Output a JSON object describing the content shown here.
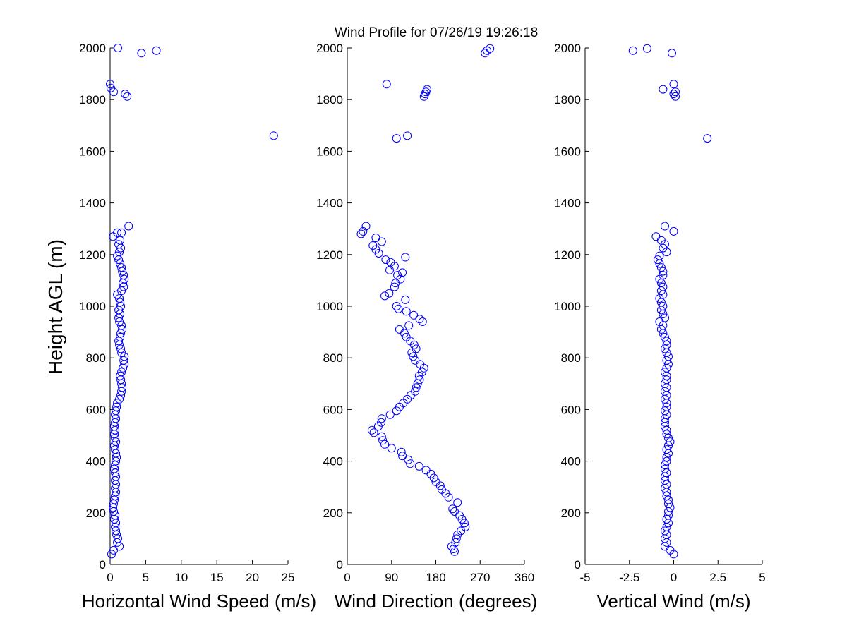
{
  "chart_data": [
    {
      "type": "scatter",
      "title": "Wind Profile for  07/26/19 19:26:18",
      "xlabel": "Horizontal Wind Speed (m/s)",
      "ylabel": "Height AGL (m)",
      "xlim": [
        0,
        25
      ],
      "ylim": [
        0,
        2000
      ],
      "xticks": [
        "0",
        "5",
        "10",
        "15",
        "20",
        "25"
      ],
      "yticks": [
        "0",
        "200",
        "400",
        "600",
        "800",
        "1000",
        "1200",
        "1400",
        "1600",
        "1800",
        "2000"
      ],
      "marker_color": "#0000ff",
      "grid": false,
      "points": [
        [
          0.2,
          40
        ],
        [
          0.5,
          55
        ],
        [
          1.3,
          70
        ],
        [
          1.0,
          85
        ],
        [
          1.1,
          100
        ],
        [
          0.9,
          115
        ],
        [
          0.8,
          130
        ],
        [
          0.7,
          145
        ],
        [
          0.8,
          160
        ],
        [
          0.6,
          175
        ],
        [
          0.7,
          190
        ],
        [
          0.5,
          205
        ],
        [
          0.4,
          220
        ],
        [
          0.5,
          235
        ],
        [
          0.6,
          250
        ],
        [
          0.7,
          265
        ],
        [
          0.8,
          280
        ],
        [
          0.7,
          295
        ],
        [
          0.8,
          310
        ],
        [
          0.7,
          325
        ],
        [
          0.8,
          340
        ],
        [
          0.7,
          355
        ],
        [
          0.6,
          370
        ],
        [
          0.7,
          385
        ],
        [
          0.8,
          400
        ],
        [
          0.9,
          415
        ],
        [
          0.8,
          430
        ],
        [
          0.7,
          445
        ],
        [
          0.6,
          460
        ],
        [
          0.8,
          475
        ],
        [
          0.7,
          490
        ],
        [
          0.6,
          505
        ],
        [
          0.7,
          520
        ],
        [
          0.6,
          535
        ],
        [
          0.7,
          550
        ],
        [
          0.8,
          565
        ],
        [
          0.7,
          580
        ],
        [
          0.8,
          595
        ],
        [
          0.9,
          610
        ],
        [
          1.0,
          625
        ],
        [
          1.3,
          640
        ],
        [
          1.5,
          655
        ],
        [
          1.6,
          670
        ],
        [
          1.7,
          685
        ],
        [
          1.6,
          700
        ],
        [
          1.5,
          715
        ],
        [
          1.4,
          730
        ],
        [
          1.6,
          745
        ],
        [
          1.8,
          760
        ],
        [
          2.0,
          775
        ],
        [
          1.9,
          790
        ],
        [
          2.0,
          805
        ],
        [
          1.6,
          820
        ],
        [
          1.5,
          835
        ],
        [
          1.3,
          850
        ],
        [
          1.2,
          865
        ],
        [
          1.4,
          880
        ],
        [
          1.5,
          895
        ],
        [
          1.7,
          910
        ],
        [
          1.6,
          925
        ],
        [
          1.3,
          940
        ],
        [
          1.2,
          955
        ],
        [
          1.4,
          970
        ],
        [
          1.2,
          985
        ],
        [
          1.5,
          1000
        ],
        [
          1.4,
          1015
        ],
        [
          1.3,
          1030
        ],
        [
          1.0,
          1045
        ],
        [
          1.6,
          1060
        ],
        [
          1.9,
          1075
        ],
        [
          1.8,
          1090
        ],
        [
          2.0,
          1105
        ],
        [
          1.9,
          1120
        ],
        [
          1.7,
          1135
        ],
        [
          1.6,
          1150
        ],
        [
          1.4,
          1165
        ],
        [
          1.2,
          1180
        ],
        [
          1.0,
          1195
        ],
        [
          1.3,
          1210
        ],
        [
          1.5,
          1225
        ],
        [
          1.2,
          1240
        ],
        [
          1.4,
          1255
        ],
        [
          0.4,
          1270
        ],
        [
          1.0,
          1285
        ],
        [
          2.6,
          1310
        ],
        [
          23.0,
          1660
        ],
        [
          1.6,
          1285
        ],
        [
          2.4,
          1812
        ],
        [
          2.1,
          1822
        ],
        [
          0.5,
          1830
        ],
        [
          0.1,
          1845
        ],
        [
          0.0,
          1860
        ],
        [
          4.4,
          1980
        ],
        [
          6.5,
          1990
        ],
        [
          1.1,
          2000
        ]
      ]
    },
    {
      "type": "scatter",
      "xlabel": "Wind Direction (degrees)",
      "xlim": [
        0,
        360
      ],
      "ylim": [
        0,
        2000
      ],
      "xticks": [
        "0",
        "90",
        "180",
        "270",
        "360"
      ],
      "yticks": [
        "0",
        "200",
        "400",
        "600",
        "800",
        "1000",
        "1200",
        "1400",
        "1600",
        "1800",
        "2000"
      ],
      "marker_color": "#0000ff",
      "grid": false,
      "points": [
        [
          218,
          50
        ],
        [
          216,
          60
        ],
        [
          212,
          70
        ],
        [
          220,
          85
        ],
        [
          222,
          100
        ],
        [
          224,
          115
        ],
        [
          231,
          130
        ],
        [
          240,
          145
        ],
        [
          238,
          160
        ],
        [
          233,
          175
        ],
        [
          228,
          190
        ],
        [
          218,
          205
        ],
        [
          214,
          215
        ],
        [
          224,
          240
        ],
        [
          206,
          260
        ],
        [
          200,
          275
        ],
        [
          192,
          290
        ],
        [
          189,
          305
        ],
        [
          180,
          320
        ],
        [
          176,
          335
        ],
        [
          170,
          350
        ],
        [
          160,
          365
        ],
        [
          146,
          380
        ],
        [
          128,
          390
        ],
        [
          124,
          405
        ],
        [
          112,
          420
        ],
        [
          110,
          435
        ],
        [
          90,
          450
        ],
        [
          76,
          465
        ],
        [
          72,
          480
        ],
        [
          70,
          495
        ],
        [
          54,
          510
        ],
        [
          50,
          520
        ],
        [
          63,
          535
        ],
        [
          69,
          550
        ],
        [
          70,
          565
        ],
        [
          87,
          580
        ],
        [
          100,
          595
        ],
        [
          106,
          610
        ],
        [
          114,
          625
        ],
        [
          122,
          640
        ],
        [
          129,
          655
        ],
        [
          138,
          670
        ],
        [
          140,
          685
        ],
        [
          143,
          700
        ],
        [
          147,
          715
        ],
        [
          146,
          730
        ],
        [
          152,
          745
        ],
        [
          156,
          760
        ],
        [
          148,
          775
        ],
        [
          138,
          790
        ],
        [
          134,
          805
        ],
        [
          131,
          820
        ],
        [
          140,
          835
        ],
        [
          136,
          850
        ],
        [
          128,
          865
        ],
        [
          120,
          880
        ],
        [
          116,
          895
        ],
        [
          106,
          910
        ],
        [
          125,
          925
        ],
        [
          153,
          940
        ],
        [
          147,
          950
        ],
        [
          135,
          965
        ],
        [
          120,
          980
        ],
        [
          104,
          990
        ],
        [
          100,
          1000
        ],
        [
          118,
          1025
        ],
        [
          76,
          1040
        ],
        [
          85,
          1050
        ],
        [
          96,
          1075
        ],
        [
          98,
          1090
        ],
        [
          108,
          1105
        ],
        [
          102,
          1120
        ],
        [
          112,
          1130
        ],
        [
          86,
          1140
        ],
        [
          96,
          1155
        ],
        [
          88,
          1170
        ],
        [
          78,
          1180
        ],
        [
          118,
          1190
        ],
        [
          64,
          1205
        ],
        [
          58,
          1220
        ],
        [
          52,
          1235
        ],
        [
          70,
          1250
        ],
        [
          58,
          1265
        ],
        [
          28,
          1280
        ],
        [
          32,
          1290
        ],
        [
          38,
          1310
        ],
        [
          100,
          1650
        ],
        [
          122,
          1660
        ],
        [
          156,
          1812
        ],
        [
          158,
          1822
        ],
        [
          160,
          1830
        ],
        [
          162,
          1840
        ],
        [
          80,
          1860
        ],
        [
          280,
          1980
        ],
        [
          284,
          1990
        ],
        [
          290,
          1998
        ]
      ]
    },
    {
      "type": "scatter",
      "xlabel": "Vertical Wind (m/s)",
      "xlim": [
        -5,
        5
      ],
      "ylim": [
        0,
        2000
      ],
      "xticks": [
        "-5",
        "-2.5",
        "0",
        "2.5",
        "5"
      ],
      "yticks": [
        "0",
        "200",
        "400",
        "600",
        "800",
        "1000",
        "1200",
        "1400",
        "1600",
        "1800",
        "2000"
      ],
      "marker_color": "#0000ff",
      "grid": false,
      "points": [
        [
          0.0,
          40
        ],
        [
          -0.2,
          55
        ],
        [
          -0.5,
          70
        ],
        [
          -0.4,
          85
        ],
        [
          -0.5,
          100
        ],
        [
          -0.4,
          115
        ],
        [
          -0.5,
          130
        ],
        [
          -0.4,
          145
        ],
        [
          -0.3,
          160
        ],
        [
          -0.4,
          175
        ],
        [
          -0.3,
          190
        ],
        [
          -0.3,
          205
        ],
        [
          -0.2,
          220
        ],
        [
          -0.3,
          235
        ],
        [
          -0.3,
          250
        ],
        [
          -0.4,
          265
        ],
        [
          -0.4,
          280
        ],
        [
          -0.5,
          295
        ],
        [
          -0.4,
          310
        ],
        [
          -0.5,
          325
        ],
        [
          -0.5,
          340
        ],
        [
          -0.4,
          355
        ],
        [
          -0.5,
          370
        ],
        [
          -0.5,
          385
        ],
        [
          -0.4,
          400
        ],
        [
          -0.4,
          415
        ],
        [
          -0.3,
          430
        ],
        [
          -0.4,
          445
        ],
        [
          -0.3,
          460
        ],
        [
          -0.2,
          475
        ],
        [
          -0.3,
          490
        ],
        [
          -0.4,
          505
        ],
        [
          -0.4,
          520
        ],
        [
          -0.5,
          535
        ],
        [
          -0.5,
          550
        ],
        [
          -0.5,
          565
        ],
        [
          -0.4,
          580
        ],
        [
          -0.5,
          595
        ],
        [
          -0.4,
          610
        ],
        [
          -0.4,
          625
        ],
        [
          -0.5,
          640
        ],
        [
          -0.4,
          655
        ],
        [
          -0.5,
          670
        ],
        [
          -0.4,
          685
        ],
        [
          -0.5,
          700
        ],
        [
          -0.4,
          715
        ],
        [
          -0.4,
          730
        ],
        [
          -0.5,
          745
        ],
        [
          -0.4,
          760
        ],
        [
          -0.3,
          775
        ],
        [
          -0.4,
          790
        ],
        [
          -0.3,
          805
        ],
        [
          -0.4,
          820
        ],
        [
          -0.5,
          835
        ],
        [
          -0.4,
          850
        ],
        [
          -0.4,
          865
        ],
        [
          -0.5,
          880
        ],
        [
          -0.6,
          895
        ],
        [
          -0.7,
          910
        ],
        [
          -0.6,
          925
        ],
        [
          -0.8,
          940
        ],
        [
          -0.5,
          955
        ],
        [
          -0.6,
          970
        ],
        [
          -0.7,
          985
        ],
        [
          -0.6,
          1000
        ],
        [
          -0.7,
          1015
        ],
        [
          -0.8,
          1030
        ],
        [
          -0.6,
          1045
        ],
        [
          -0.7,
          1060
        ],
        [
          -0.6,
          1075
        ],
        [
          -0.7,
          1090
        ],
        [
          -0.8,
          1105
        ],
        [
          -0.6,
          1120
        ],
        [
          -0.6,
          1135
        ],
        [
          -0.7,
          1150
        ],
        [
          -0.8,
          1165
        ],
        [
          -0.9,
          1180
        ],
        [
          -0.8,
          1195
        ],
        [
          -0.4,
          1210
        ],
        [
          -0.6,
          1225
        ],
        [
          -0.5,
          1240
        ],
        [
          -0.7,
          1255
        ],
        [
          -1.0,
          1270
        ],
        [
          0.0,
          1290
        ],
        [
          -0.5,
          1310
        ],
        [
          1.9,
          1650
        ],
        [
          0.1,
          1812
        ],
        [
          0.0,
          1822
        ],
        [
          0.1,
          1830
        ],
        [
          -0.6,
          1840
        ],
        [
          0.0,
          1860
        ],
        [
          -0.1,
          1980
        ],
        [
          -2.3,
          1990
        ],
        [
          -1.5,
          1998
        ]
      ]
    }
  ]
}
